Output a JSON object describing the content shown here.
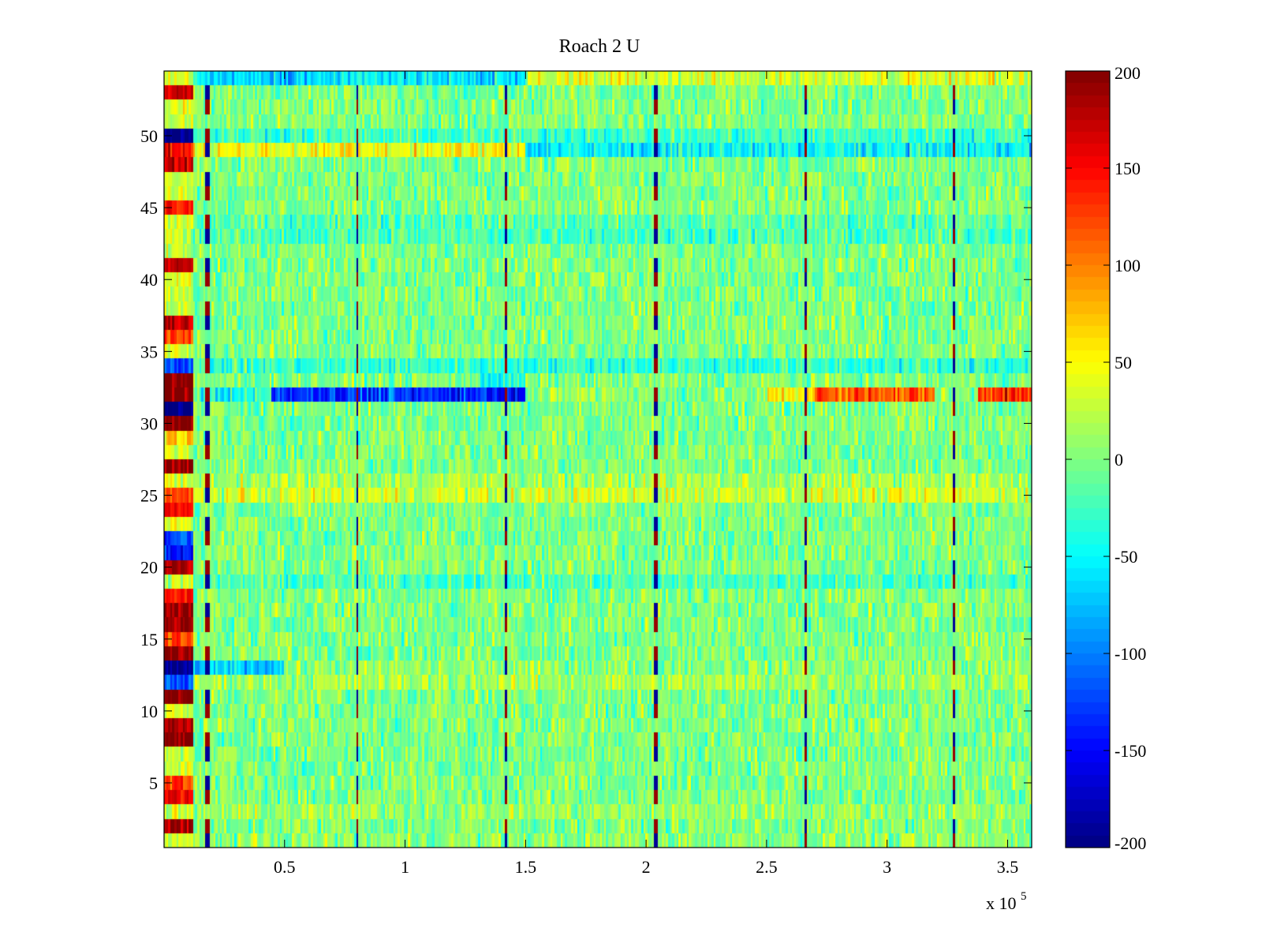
{
  "chart_data": {
    "type": "heatmap",
    "title": "Roach 2 U",
    "xlabel": "",
    "ylabel": "",
    "x_exponent_label": {
      "base": "x 10",
      "exponent": "5"
    },
    "xlim": [
      0,
      3.6
    ],
    "ylim": [
      0.5,
      54.5
    ],
    "rows": 54,
    "x_ticks": [
      {
        "value": 0.5,
        "label": "0.5"
      },
      {
        "value": 1.0,
        "label": "1"
      },
      {
        "value": 1.5,
        "label": "1.5"
      },
      {
        "value": 2.0,
        "label": "2"
      },
      {
        "value": 2.5,
        "label": "2.5"
      },
      {
        "value": 3.0,
        "label": "3"
      },
      {
        "value": 3.5,
        "label": "3.5"
      }
    ],
    "y_ticks": [
      {
        "value": 5,
        "label": "5"
      },
      {
        "value": 10,
        "label": "10"
      },
      {
        "value": 15,
        "label": "15"
      },
      {
        "value": 20,
        "label": "20"
      },
      {
        "value": 25,
        "label": "25"
      },
      {
        "value": 30,
        "label": "30"
      },
      {
        "value": 35,
        "label": "35"
      },
      {
        "value": 40,
        "label": "40"
      },
      {
        "value": 45,
        "label": "45"
      },
      {
        "value": 50,
        "label": "50"
      }
    ],
    "colorbar": {
      "colormap": "jet",
      "range": [
        -200,
        200
      ],
      "ticks": [
        {
          "value": 200,
          "label": "200"
        },
        {
          "value": 150,
          "label": "150"
        },
        {
          "value": 100,
          "label": "100"
        },
        {
          "value": 50,
          "label": "50"
        },
        {
          "value": 0,
          "label": "0"
        },
        {
          "value": -50,
          "label": "-50"
        },
        {
          "value": -100,
          "label": "-100"
        },
        {
          "value": -150,
          "label": "-150"
        },
        {
          "value": -200,
          "label": "-200"
        }
      ]
    },
    "periodic_spike_x": [
      0.18,
      0.8,
      1.42,
      2.04,
      2.66,
      3.28
    ],
    "initial_segment_end_x": 0.12,
    "initial_segment_values": {
      "2": 180,
      "4": 150,
      "5": 120,
      "8": 200,
      "9": 180,
      "11": 200,
      "12": -120,
      "13": -200,
      "14": 200,
      "15": 120,
      "16": 200,
      "17": 200,
      "18": 150,
      "20": 180,
      "21": -150,
      "22": -120,
      "24": 150,
      "25": 120,
      "27": 190,
      "29": 60,
      "30": 200,
      "31": -200,
      "32": 200,
      "33": 200,
      "34": -110,
      "36": 120,
      "37": 170,
      "41": 170,
      "45": 150,
      "48": 170,
      "49": 150,
      "50": -200,
      "53": 170
    },
    "row_bias": {
      "1": 5,
      "3": 10,
      "25": 30,
      "26": 15,
      "49": 45,
      "50": -25,
      "43": -20,
      "44": -15,
      "34": -30,
      "19": -20,
      "12": 15,
      "13": 5
    },
    "row_segments": [
      {
        "row": 54,
        "from": 0.0,
        "to": 1.5,
        "value": -60
      },
      {
        "row": 54,
        "from": 1.5,
        "to": 3.6,
        "value": 35
      },
      {
        "row": 49,
        "from": 1.5,
        "to": 3.6,
        "value": -50
      },
      {
        "row": 32,
        "from": 0.45,
        "to": 1.5,
        "value": -130
      },
      {
        "row": 32,
        "from": 0.15,
        "to": 0.45,
        "value": -40
      },
      {
        "row": 32,
        "from": 1.6,
        "to": 1.9,
        "value": 20
      },
      {
        "row": 32,
        "from": 2.5,
        "to": 2.7,
        "value": 60
      },
      {
        "row": 32,
        "from": 2.7,
        "to": 3.2,
        "value": 120
      },
      {
        "row": 32,
        "from": 3.38,
        "to": 3.6,
        "value": 130
      },
      {
        "row": 33,
        "from": 1.3,
        "to": 1.5,
        "value": -40
      },
      {
        "row": 13,
        "from": 0.12,
        "to": 0.5,
        "value": -60
      }
    ]
  }
}
